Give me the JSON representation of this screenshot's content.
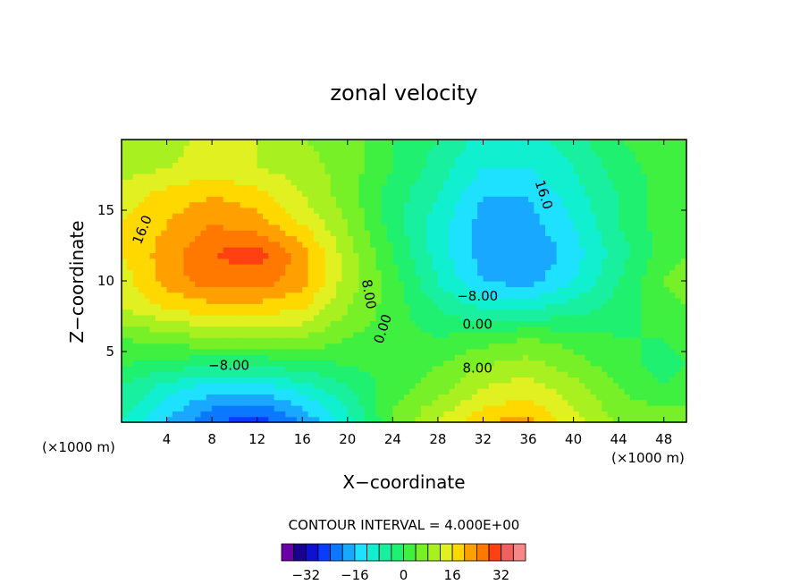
{
  "chart_data": {
    "type": "heatmap",
    "title": "zonal velocity",
    "xlabel": "X−coordinate",
    "ylabel": "Z−coordinate",
    "x_unit": "(×1000 m)",
    "x_unit_right": "(×1000 m)",
    "xlim": [
      0,
      50
    ],
    "ylim": [
      0,
      20
    ],
    "x_ticks": [
      4,
      8,
      12,
      16,
      20,
      24,
      28,
      32,
      36,
      40,
      44,
      48
    ],
    "y_ticks": [
      5,
      10,
      15
    ],
    "contour_interval_text": "CONTOUR INTERVAL = 4.000E+00",
    "contour_labels": [
      "16.0",
      "8.00",
      "0.00",
      "−8.00",
      "−8.00",
      "0.00",
      "8.00",
      "16.0"
    ],
    "field_grid": {
      "x": [
        0,
        4,
        8,
        12,
        16,
        20,
        24,
        28,
        32,
        36,
        40,
        44,
        48,
        50
      ],
      "z": [
        0,
        1,
        2.5,
        4,
        6,
        8,
        10,
        12,
        14,
        16,
        18,
        20
      ],
      "values": [
        [
          -8,
          -16,
          -24,
          -26,
          -20,
          -10,
          4,
          12,
          20,
          22,
          14,
          8,
          6,
          6
        ],
        [
          -6,
          -14,
          -20,
          -22,
          -16,
          -8,
          4,
          10,
          16,
          18,
          12,
          6,
          4,
          4
        ],
        [
          -4,
          -10,
          -14,
          -14,
          -10,
          -4,
          2,
          6,
          12,
          14,
          10,
          4,
          0,
          2
        ],
        [
          0,
          -2,
          -4,
          -4,
          -2,
          0,
          2,
          4,
          8,
          10,
          6,
          2,
          -2,
          0
        ],
        [
          4,
          6,
          8,
          8,
          8,
          4,
          2,
          0,
          2,
          4,
          2,
          0,
          0,
          2
        ],
        [
          12,
          16,
          18,
          18,
          16,
          8,
          2,
          -4,
          -8,
          -8,
          -6,
          -2,
          2,
          4
        ],
        [
          14,
          22,
          26,
          26,
          22,
          10,
          2,
          -8,
          -16,
          -18,
          -12,
          -4,
          4,
          6
        ],
        [
          16,
          22,
          28,
          30,
          22,
          10,
          0,
          -10,
          -18,
          -20,
          -14,
          -6,
          2,
          4
        ],
        [
          16,
          20,
          24,
          22,
          16,
          8,
          -2,
          -10,
          -18,
          -18,
          -12,
          -4,
          2,
          4
        ],
        [
          14,
          18,
          20,
          18,
          12,
          6,
          -2,
          -8,
          -16,
          -16,
          -10,
          -4,
          2,
          4
        ],
        [
          10,
          12,
          14,
          12,
          10,
          6,
          0,
          -6,
          -12,
          -12,
          -8,
          -2,
          2,
          4
        ],
        [
          8,
          10,
          14,
          12,
          8,
          6,
          0,
          -4,
          -10,
          -10,
          -6,
          0,
          2,
          4
        ]
      ]
    },
    "colorbar": {
      "levels": [
        -40,
        -36,
        -32,
        -28,
        -24,
        -20,
        -16,
        -12,
        -8,
        -4,
        0,
        4,
        8,
        12,
        16,
        20,
        24,
        28,
        32,
        36,
        40
      ],
      "colors": [
        "#6a00a8",
        "#1a0090",
        "#1010d0",
        "#0a3cff",
        "#0a78ff",
        "#18a8ff",
        "#1ee0ff",
        "#10f0d0",
        "#18f0a0",
        "#20f070",
        "#40f040",
        "#78f028",
        "#a8f020",
        "#e0f020",
        "#ffd800",
        "#ffa000",
        "#ff7800",
        "#ff4010",
        "#f06060",
        "#f88888"
      ],
      "tick_labels": [
        {
          "value": -32,
          "label": "−32"
        },
        {
          "value": -16,
          "label": "−16"
        },
        {
          "value": 0,
          "label": "0"
        },
        {
          "value": 16,
          "label": "16"
        },
        {
          "value": 32,
          "label": "32"
        }
      ]
    }
  }
}
